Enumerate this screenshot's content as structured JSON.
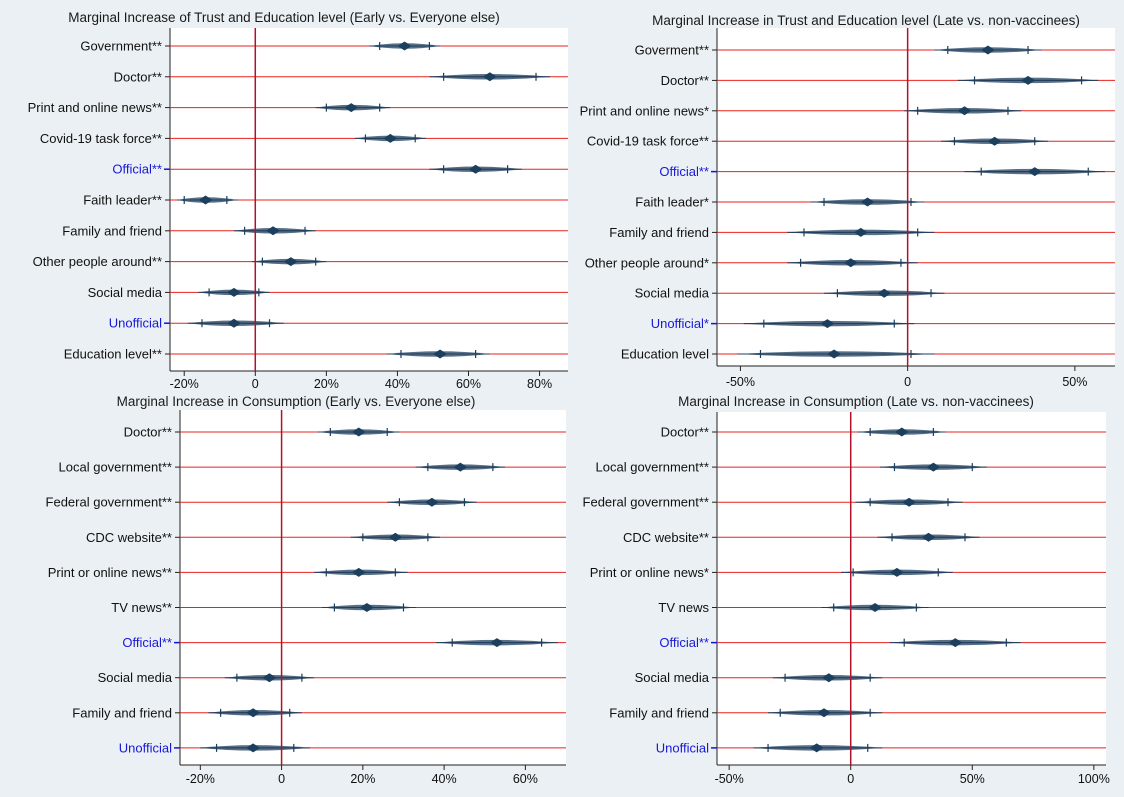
{
  "colors": {
    "background": "#eaf0f3",
    "plot_bg": "#ffffff",
    "row_line": "#e8231c",
    "zero_line": "#b0122a",
    "marker": "#1d3f5e",
    "label_default": "#111111",
    "label_official": "#1818d8",
    "axis": "#222222"
  },
  "chart_data": [
    {
      "type": "coefficient_plot",
      "title": "Marginal Increase of Trust and Education level (Early vs. Everyone else)",
      "xlim": [
        -24,
        88
      ],
      "ticks": [
        -20,
        0,
        20,
        40,
        60,
        80
      ],
      "tick_labels": [
        "-20%",
        "0",
        "20%",
        "40%",
        "60%",
        "80%"
      ],
      "rows": [
        {
          "label": "Government**",
          "estimate": 42,
          "ci90": [
            35,
            49
          ],
          "ci95": [
            32,
            52
          ],
          "highlight": false
        },
        {
          "label": "Doctor**",
          "estimate": 66,
          "ci90": [
            53,
            79
          ],
          "ci95": [
            49,
            83
          ],
          "highlight": false
        },
        {
          "label": "Print and online news**",
          "estimate": 27,
          "ci90": [
            20,
            35
          ],
          "ci95": [
            17,
            38
          ],
          "highlight": false
        },
        {
          "label": "Covid-19 task force**",
          "estimate": 38,
          "ci90": [
            31,
            45
          ],
          "ci95": [
            28,
            48
          ],
          "highlight": false
        },
        {
          "label": "Official**",
          "estimate": 62,
          "ci90": [
            53,
            71
          ],
          "ci95": [
            49,
            75
          ],
          "highlight": true
        },
        {
          "label": "Faith leader**",
          "estimate": -14,
          "ci90": [
            -20,
            -8
          ],
          "ci95": [
            -22,
            -5
          ],
          "highlight": false
        },
        {
          "label": "Family and friend",
          "estimate": 5,
          "ci90": [
            -3,
            14
          ],
          "ci95": [
            -6,
            17
          ],
          "highlight": false
        },
        {
          "label": "Other people around**",
          "estimate": 10,
          "ci90": [
            2,
            17
          ],
          "ci95": [
            -1,
            20
          ],
          "highlight": false
        },
        {
          "label": "Social media",
          "estimate": -6,
          "ci90": [
            -13,
            1
          ],
          "ci95": [
            -16,
            4
          ],
          "highlight": false
        },
        {
          "label": "Unofficial",
          "estimate": -6,
          "ci90": [
            -15,
            4
          ],
          "ci95": [
            -19,
            8
          ],
          "highlight": true
        },
        {
          "label": "Education level**",
          "estimate": 52,
          "ci90": [
            41,
            62
          ],
          "ci95": [
            37,
            66
          ],
          "highlight": false
        }
      ]
    },
    {
      "type": "coefficient_plot",
      "title": "Marginal Increase in Trust and Education level (Late vs. non-vaccinees)",
      "xlim": [
        -57,
        62
      ],
      "ticks": [
        -50,
        0,
        50
      ],
      "tick_labels": [
        "-50%",
        "0",
        "50%"
      ],
      "rows": [
        {
          "label": "Goverment**",
          "estimate": 24,
          "ci90": [
            12,
            36
          ],
          "ci95": [
            8,
            40
          ],
          "highlight": false
        },
        {
          "label": "Doctor**",
          "estimate": 36,
          "ci90": [
            20,
            52
          ],
          "ci95": [
            15,
            57
          ],
          "highlight": false
        },
        {
          "label": "Print and online news*",
          "estimate": 17,
          "ci90": [
            3,
            30
          ],
          "ci95": [
            -1,
            34
          ],
          "highlight": false
        },
        {
          "label": "Covid-19 task force**",
          "estimate": 26,
          "ci90": [
            14,
            38
          ],
          "ci95": [
            10,
            42
          ],
          "highlight": false
        },
        {
          "label": "Official**",
          "estimate": 38,
          "ci90": [
            22,
            54
          ],
          "ci95": [
            17,
            59
          ],
          "highlight": true
        },
        {
          "label": "Faith leader*",
          "estimate": -12,
          "ci90": [
            -25,
            1
          ],
          "ci95": [
            -29,
            5
          ],
          "highlight": false
        },
        {
          "label": "Family and friend",
          "estimate": -14,
          "ci90": [
            -31,
            3
          ],
          "ci95": [
            -36,
            8
          ],
          "highlight": false
        },
        {
          "label": "Other people around*",
          "estimate": -17,
          "ci90": [
            -32,
            -2
          ],
          "ci95": [
            -36,
            3
          ],
          "highlight": false
        },
        {
          "label": "Social media",
          "estimate": -7,
          "ci90": [
            -21,
            7
          ],
          "ci95": [
            -25,
            11
          ],
          "highlight": false
        },
        {
          "label": "Unofficial*",
          "estimate": -24,
          "ci90": [
            -43,
            -4
          ],
          "ci95": [
            -49,
            2
          ],
          "highlight": true
        },
        {
          "label": "Education level",
          "estimate": -22,
          "ci90": [
            -44,
            1
          ],
          "ci95": [
            -51,
            8
          ],
          "highlight": false
        }
      ]
    },
    {
      "type": "coefficient_plot",
      "title": "Marginal Increase in Consumption (Early vs. Everyone else)",
      "xlim": [
        -25,
        70
      ],
      "ticks": [
        -20,
        0,
        20,
        40,
        60
      ],
      "tick_labels": [
        "-20%",
        "0",
        "20%",
        "40%",
        "60%"
      ],
      "rows": [
        {
          "label": "Doctor**",
          "estimate": 19,
          "ci90": [
            12,
            26
          ],
          "ci95": [
            9,
            29
          ],
          "highlight": false
        },
        {
          "label": "Local government**",
          "estimate": 44,
          "ci90": [
            36,
            52
          ],
          "ci95": [
            33,
            55
          ],
          "highlight": false
        },
        {
          "label": "Federal government**",
          "estimate": 37,
          "ci90": [
            29,
            45
          ],
          "ci95": [
            26,
            48
          ],
          "highlight": false
        },
        {
          "label": "CDC website**",
          "estimate": 28,
          "ci90": [
            20,
            36
          ],
          "ci95": [
            17,
            39
          ],
          "highlight": false
        },
        {
          "label": "Print or online news**",
          "estimate": 19,
          "ci90": [
            11,
            28
          ],
          "ci95": [
            8,
            31
          ],
          "highlight": false
        },
        {
          "label": "TV news**",
          "estimate": 21,
          "ci90": [
            13,
            30
          ],
          "ci95": [
            10,
            33
          ],
          "highlight": false
        },
        {
          "label": "Official**",
          "estimate": 53,
          "ci90": [
            42,
            64
          ],
          "ci95": [
            38,
            68
          ],
          "highlight": true
        },
        {
          "label": "Social media",
          "estimate": -3,
          "ci90": [
            -11,
            5
          ],
          "ci95": [
            -14,
            8
          ],
          "highlight": false
        },
        {
          "label": "Family and friend",
          "estimate": -7,
          "ci90": [
            -15,
            2
          ],
          "ci95": [
            -18,
            5
          ],
          "highlight": false
        },
        {
          "label": "Unofficial",
          "estimate": -7,
          "ci90": [
            -16,
            3
          ],
          "ci95": [
            -20,
            7
          ],
          "highlight": true
        }
      ]
    },
    {
      "type": "coefficient_plot",
      "title": "Marginal Increase in Consumption (Late vs. non-vaccinees)",
      "xlim": [
        -55,
        105
      ],
      "ticks": [
        -50,
        0,
        50,
        100
      ],
      "tick_labels": [
        "-50%",
        "0",
        "50%",
        "100%"
      ],
      "rows": [
        {
          "label": "Doctor**",
          "estimate": 21,
          "ci90": [
            8,
            34
          ],
          "ci95": [
            3,
            39
          ],
          "highlight": false
        },
        {
          "label": "Local government**",
          "estimate": 34,
          "ci90": [
            18,
            50
          ],
          "ci95": [
            12,
            56
          ],
          "highlight": false
        },
        {
          "label": "Federal government**",
          "estimate": 24,
          "ci90": [
            8,
            40
          ],
          "ci95": [
            2,
            46
          ],
          "highlight": false
        },
        {
          "label": "CDC website**",
          "estimate": 32,
          "ci90": [
            17,
            47
          ],
          "ci95": [
            11,
            53
          ],
          "highlight": false
        },
        {
          "label": "Print or online news*",
          "estimate": 19,
          "ci90": [
            1,
            36
          ],
          "ci95": [
            -4,
            42
          ],
          "highlight": false
        },
        {
          "label": "TV news",
          "estimate": 10,
          "ci90": [
            -7,
            27
          ],
          "ci95": [
            -12,
            32
          ],
          "highlight": false
        },
        {
          "label": "Official**",
          "estimate": 43,
          "ci90": [
            22,
            64
          ],
          "ci95": [
            16,
            70
          ],
          "highlight": true
        },
        {
          "label": "Social media",
          "estimate": -9,
          "ci90": [
            -27,
            8
          ],
          "ci95": [
            -32,
            13
          ],
          "highlight": false
        },
        {
          "label": "Family and friend",
          "estimate": -11,
          "ci90": [
            -29,
            8
          ],
          "ci95": [
            -34,
            13
          ],
          "highlight": false
        },
        {
          "label": "Unofficial",
          "estimate": -14,
          "ci90": [
            -34,
            7
          ],
          "ci95": [
            -40,
            13
          ],
          "highlight": true
        }
      ]
    }
  ]
}
